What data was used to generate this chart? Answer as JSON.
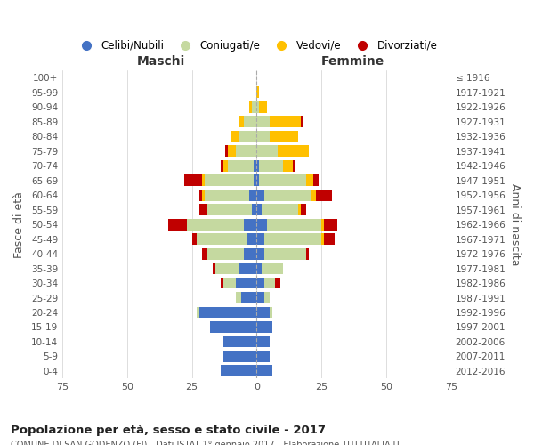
{
  "age_groups": [
    "0-4",
    "5-9",
    "10-14",
    "15-19",
    "20-24",
    "25-29",
    "30-34",
    "35-39",
    "40-44",
    "45-49",
    "50-54",
    "55-59",
    "60-64",
    "65-69",
    "70-74",
    "75-79",
    "80-84",
    "85-89",
    "90-94",
    "95-99",
    "100+"
  ],
  "birth_years": [
    "2012-2016",
    "2007-2011",
    "2002-2006",
    "1997-2001",
    "1992-1996",
    "1987-1991",
    "1982-1986",
    "1977-1981",
    "1972-1976",
    "1967-1971",
    "1962-1966",
    "1957-1961",
    "1952-1956",
    "1947-1951",
    "1942-1946",
    "1937-1941",
    "1932-1936",
    "1927-1931",
    "1922-1926",
    "1917-1921",
    "≤ 1916"
  ],
  "male": {
    "celibi": [
      14,
      13,
      13,
      18,
      22,
      6,
      8,
      7,
      5,
      4,
      5,
      2,
      3,
      1,
      1,
      0,
      0,
      0,
      0,
      0,
      0
    ],
    "coniugati": [
      0,
      0,
      0,
      0,
      1,
      2,
      5,
      9,
      14,
      19,
      22,
      17,
      17,
      19,
      10,
      8,
      7,
      5,
      2,
      0,
      0
    ],
    "vedovi": [
      0,
      0,
      0,
      0,
      0,
      0,
      0,
      0,
      0,
      0,
      0,
      0,
      1,
      1,
      2,
      3,
      3,
      2,
      1,
      0,
      0
    ],
    "divorziati": [
      0,
      0,
      0,
      0,
      0,
      0,
      1,
      1,
      2,
      2,
      7,
      3,
      1,
      7,
      1,
      1,
      0,
      0,
      0,
      0,
      0
    ]
  },
  "female": {
    "nubili": [
      6,
      5,
      5,
      6,
      5,
      3,
      3,
      2,
      3,
      3,
      4,
      2,
      3,
      1,
      1,
      0,
      0,
      0,
      0,
      0,
      0
    ],
    "coniugate": [
      0,
      0,
      0,
      0,
      1,
      2,
      4,
      8,
      16,
      22,
      21,
      14,
      18,
      18,
      9,
      8,
      5,
      5,
      1,
      0,
      0
    ],
    "vedove": [
      0,
      0,
      0,
      0,
      0,
      0,
      0,
      0,
      0,
      1,
      1,
      1,
      2,
      3,
      4,
      12,
      11,
      12,
      3,
      1,
      0
    ],
    "divorziate": [
      0,
      0,
      0,
      0,
      0,
      0,
      2,
      0,
      1,
      4,
      5,
      2,
      6,
      2,
      1,
      0,
      0,
      1,
      0,
      0,
      0
    ]
  },
  "colors": {
    "celibi": "#4472c4",
    "coniugati": "#c5d9a0",
    "vedovi": "#ffc000",
    "divorziati": "#c00000"
  },
  "title": "Popolazione per età, sesso e stato civile - 2017",
  "subtitle": "COMUNE DI SAN GODENZO (FI) - Dati ISTAT 1° gennaio 2017 - Elaborazione TUTTITALIA.IT",
  "xlabel_left": "Maschi",
  "xlabel_right": "Femmine",
  "ylabel_left": "Fasce di età",
  "ylabel_right": "Anni di nascita",
  "xlim": 75,
  "legend_labels": [
    "Celibi/Nubili",
    "Coniugati/e",
    "Vedovi/e",
    "Divorziati/e"
  ],
  "background_color": "#ffffff",
  "grid_color": "#cccccc"
}
